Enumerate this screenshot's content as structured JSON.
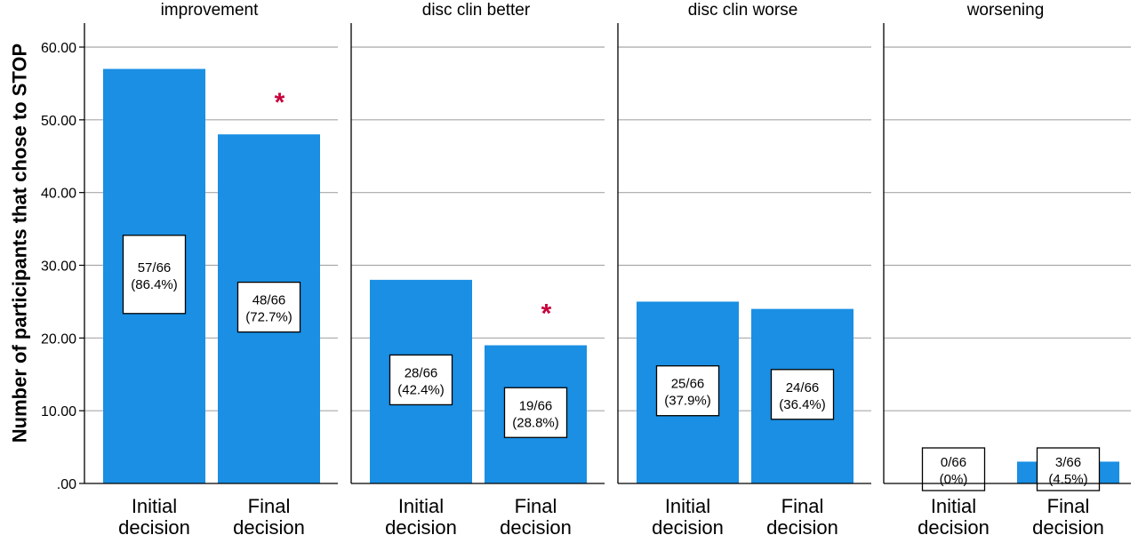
{
  "chart_data": {
    "type": "bar",
    "ylabel": "Number of participants that chose to STOP",
    "ylim": [
      0,
      62
    ],
    "yticks": [
      0,
      10,
      20,
      30,
      40,
      50,
      60
    ],
    "ytick_labels": [
      ".00",
      "10.00",
      "20.00",
      "30.00",
      "40.00",
      "50.00",
      "60.00"
    ],
    "grid": true,
    "bar_color": "#1a8fe3",
    "significance_color": "#c8003c",
    "panels": [
      {
        "title": "improvement",
        "bars": [
          {
            "category": "Initial decision",
            "value": 57,
            "label_fraction": "57/66",
            "label_percent": "(86.4%)"
          },
          {
            "category": "Final decision",
            "value": 48,
            "label_fraction": "48/66",
            "label_percent": "(72.7%)",
            "significant": true
          }
        ]
      },
      {
        "title": "disc clin better",
        "bars": [
          {
            "category": "Initial decision",
            "value": 28,
            "label_fraction": "28/66",
            "label_percent": "(42.4%)"
          },
          {
            "category": "Final decision",
            "value": 19,
            "label_fraction": "19/66",
            "label_percent": "(28.8%)",
            "significant": true
          }
        ]
      },
      {
        "title": "disc clin worse",
        "bars": [
          {
            "category": "Initial decision",
            "value": 25,
            "label_fraction": "25/66",
            "label_percent": "(37.9%)"
          },
          {
            "category": "Final decision",
            "value": 24,
            "label_fraction": "24/66",
            "label_percent": "(36.4%)"
          }
        ]
      },
      {
        "title": "worsening",
        "bars": [
          {
            "category": "Initial decision",
            "value": 0,
            "label_fraction": "0/66",
            "label_percent": "(0%)"
          },
          {
            "category": "Final decision",
            "value": 3,
            "label_fraction": "3/66",
            "label_percent": "(4.5%)"
          }
        ]
      }
    ],
    "significance_marker": "*"
  }
}
